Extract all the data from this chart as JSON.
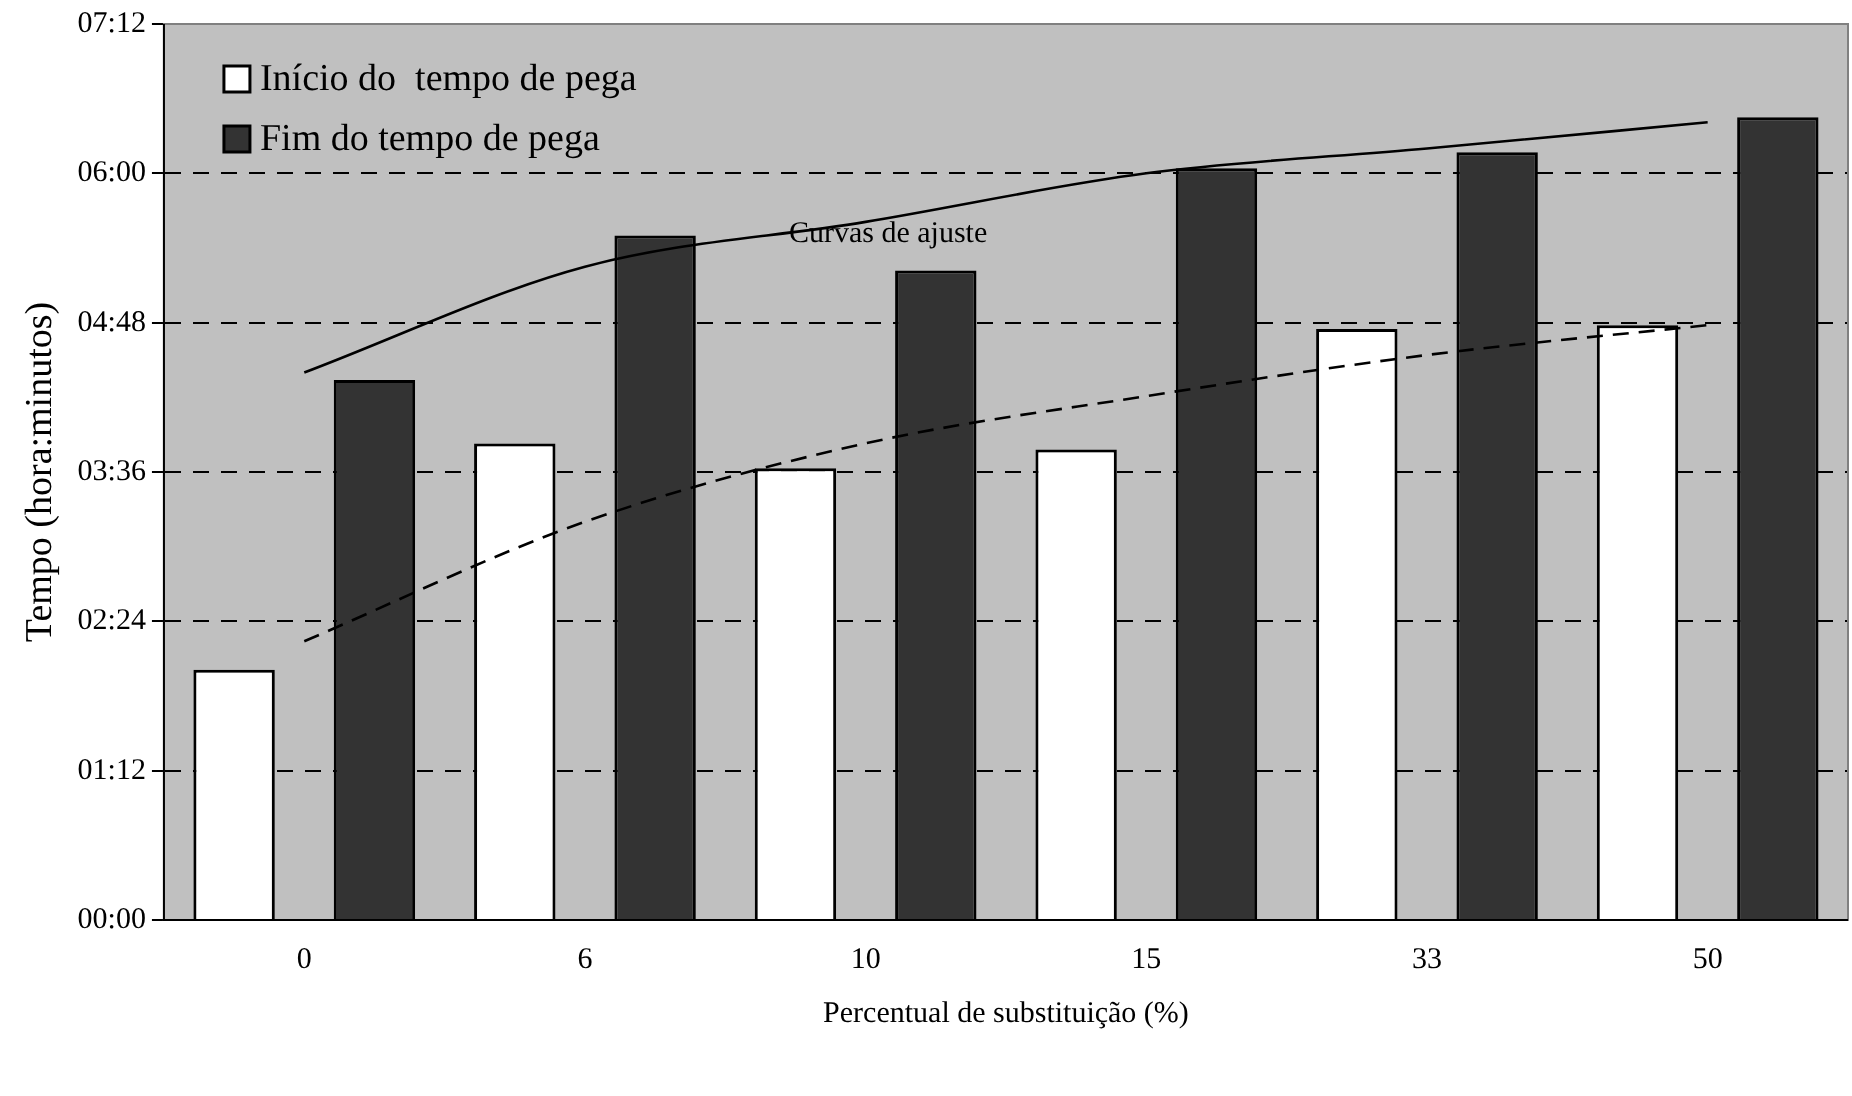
{
  "chart_data": {
    "type": "bar",
    "xlabel": "Percentual de substituição (%)",
    "ylabel": "Tempo (hora:minutos)",
    "categories": [
      "0",
      "6",
      "10",
      "15",
      "33",
      "50"
    ],
    "series": [
      {
        "name": "Início do  tempo de pega",
        "color": "#ffffff",
        "values": [
          2.01,
          3.83,
          3.63,
          3.78,
          4.75,
          4.78
        ]
      },
      {
        "name": "Fim do tempo de pega",
        "color": "#333333",
        "values": [
          4.34,
          5.5,
          5.22,
          6.04,
          6.17,
          6.45
        ]
      },
      {
        "type": "line",
        "color": "#000000",
        "line_style": "solid",
        "values": [
          4.4,
          5.25,
          5.61,
          6.0,
          6.2,
          6.41
        ]
      },
      {
        "type": "line",
        "color": "#000000",
        "line_style": "dashed",
        "values": [
          2.24,
          3.2,
          3.83,
          4.21,
          4.54,
          4.78
        ]
      }
    ],
    "ylim": [
      0,
      7.2
    ],
    "yticks": [
      {
        "value": 0,
        "label": "00:00"
      },
      {
        "value": 1.2,
        "label": "01:12"
      },
      {
        "value": 2.4,
        "label": "02:24"
      },
      {
        "value": 3.6,
        "label": "03:36"
      },
      {
        "value": 4.8,
        "label": "04:48"
      },
      {
        "value": 6,
        "label": "06:00"
      },
      {
        "value": 7.2,
        "label": "07:12"
      }
    ],
    "grid": "y",
    "legend": "top left",
    "marker": "none",
    "annotations": [
      "Curvas de ajuste"
    ]
  }
}
